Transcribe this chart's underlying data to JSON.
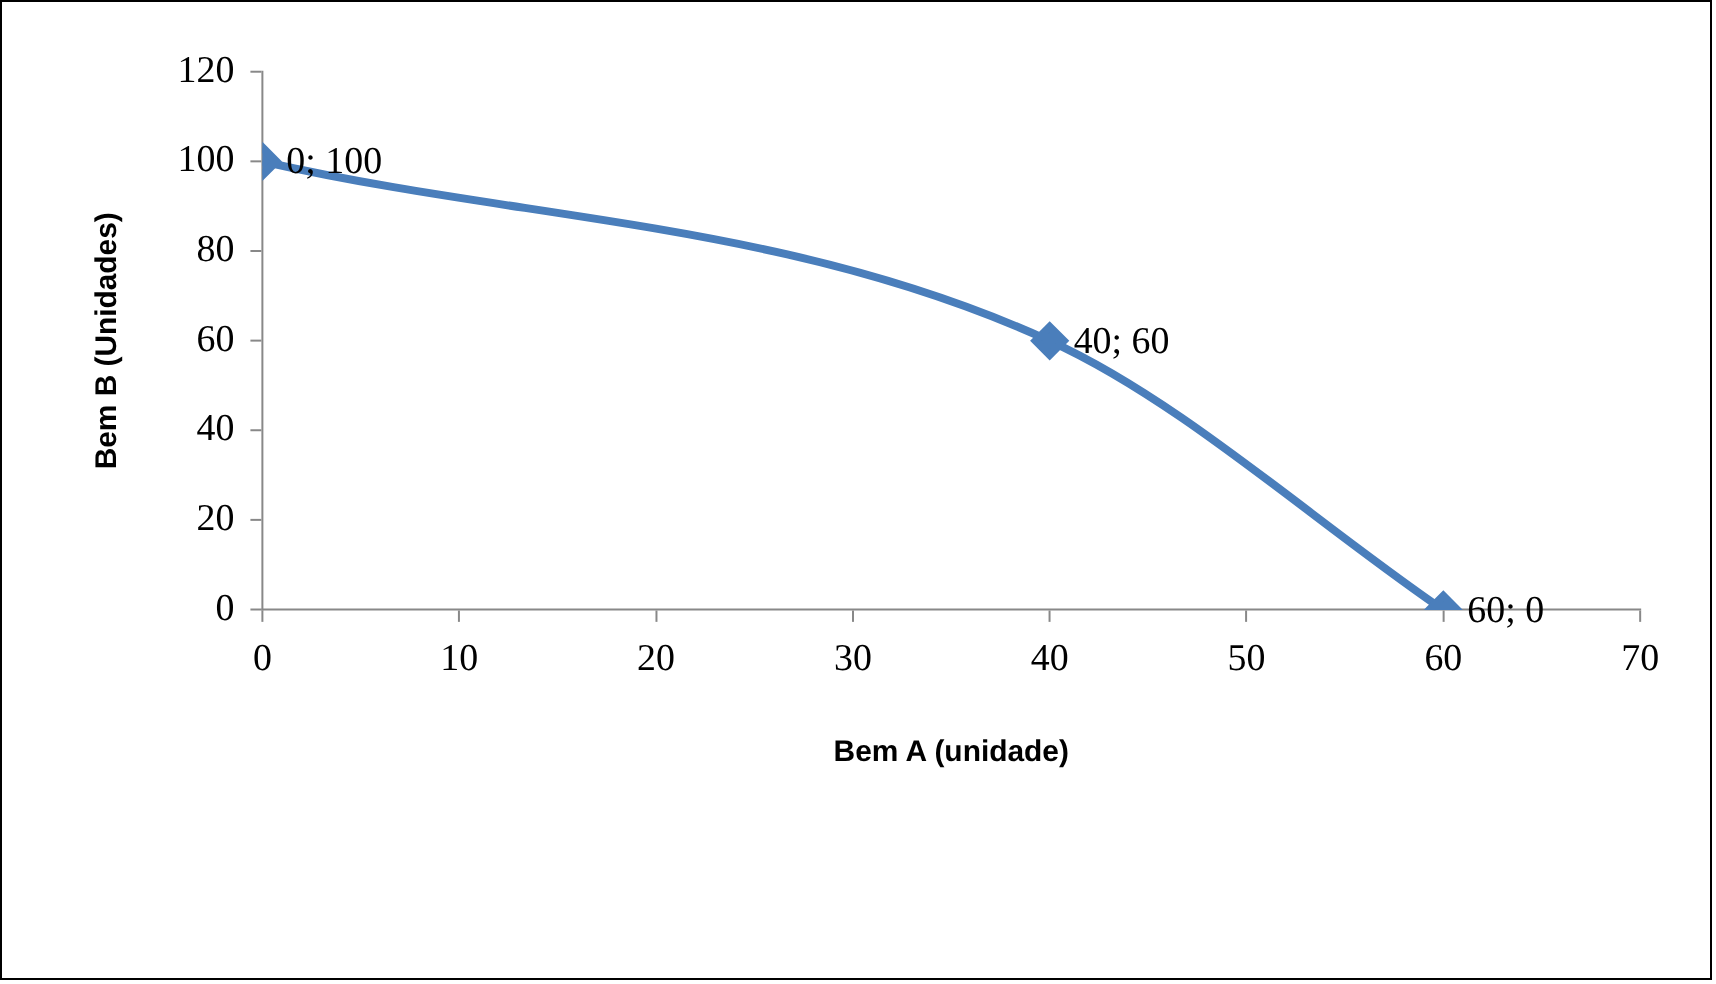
{
  "chart_data": {
    "type": "line",
    "xlabel": "Bem A (unidade)",
    "ylabel": "Bem B (Unidades)",
    "x": [
      0,
      40,
      60
    ],
    "series": [
      {
        "color": "#4a7ebb",
        "values": [
          100,
          60,
          0
        ],
        "value_labels": [
          "0; 100",
          "40; 60",
          "60; 0"
        ]
      }
    ],
    "xlim": [
      0,
      70
    ],
    "xticks": [
      0,
      10,
      20,
      30,
      40,
      50,
      60,
      70
    ],
    "ylim": [
      0,
      120
    ],
    "yticks": [
      0,
      20,
      40,
      60,
      80,
      100,
      120
    ],
    "marker": "diamond"
  }
}
